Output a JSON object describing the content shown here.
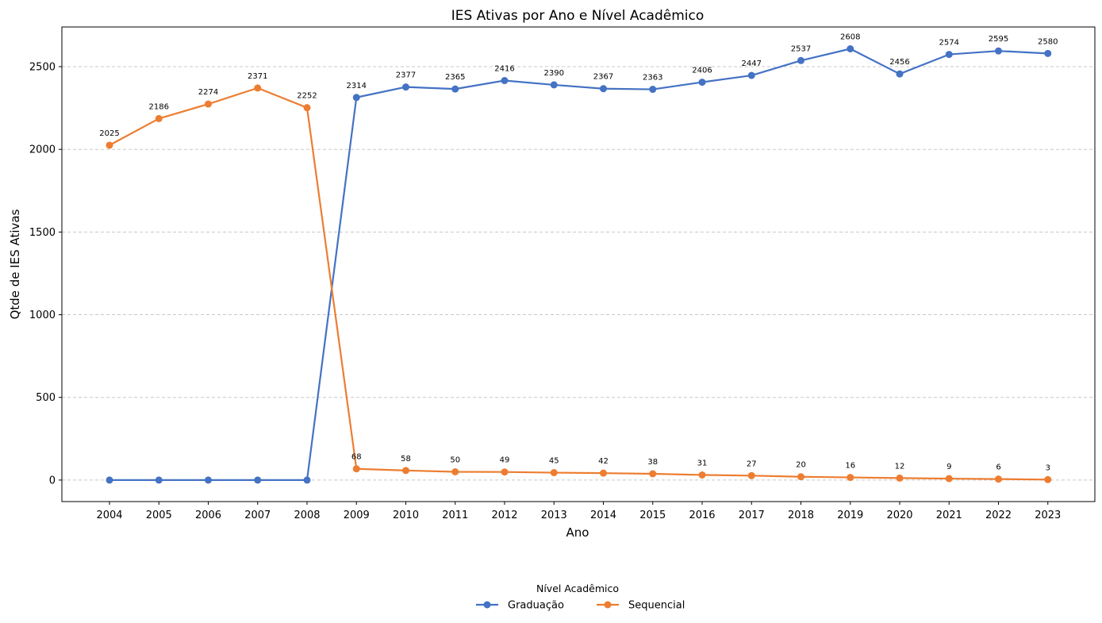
{
  "chart_data": {
    "type": "line",
    "title": "IES Ativas por Ano e Nível Acadêmico",
    "xlabel": "Ano",
    "ylabel": "Qtde de IES Ativas",
    "x": [
      "2004",
      "2005",
      "2006",
      "2007",
      "2008",
      "2009",
      "2010",
      "2011",
      "2012",
      "2013",
      "2014",
      "2015",
      "2016",
      "2017",
      "2018",
      "2019",
      "2020",
      "2021",
      "2022",
      "2023"
    ],
    "ylim": [
      -130,
      2740
    ],
    "yticks": [
      0,
      500,
      1000,
      1500,
      2000,
      2500
    ],
    "grid": "y-dashed",
    "legend": {
      "title": "Nível Acadêmico",
      "placement": "bottom-center"
    },
    "series": [
      {
        "name": "Graduação",
        "color": "#4472c4",
        "values": [
          0,
          0,
          0,
          0,
          0,
          2314,
          2377,
          2365,
          2416,
          2390,
          2367,
          2363,
          2406,
          2447,
          2537,
          2608,
          2456,
          2574,
          2595,
          2580
        ],
        "labels": [
          null,
          null,
          null,
          null,
          null,
          "2314",
          "2377",
          "2365",
          "2416",
          "2390",
          "2367",
          "2363",
          "2406",
          "2447",
          "2537",
          "2608",
          "2456",
          "2574",
          "2595",
          "2580"
        ]
      },
      {
        "name": "Sequencial",
        "color": "#ed7d31",
        "values": [
          2025,
          2186,
          2274,
          2371,
          2252,
          68,
          58,
          50,
          49,
          45,
          42,
          38,
          31,
          27,
          20,
          16,
          12,
          9,
          6,
          3
        ],
        "labels": [
          "2025",
          "2186",
          "2274",
          "2371",
          "2252",
          "68",
          "58",
          "50",
          "49",
          "45",
          "42",
          "38",
          "31",
          "27",
          "20",
          "16",
          "12",
          "9",
          "6",
          "3"
        ]
      }
    ]
  }
}
